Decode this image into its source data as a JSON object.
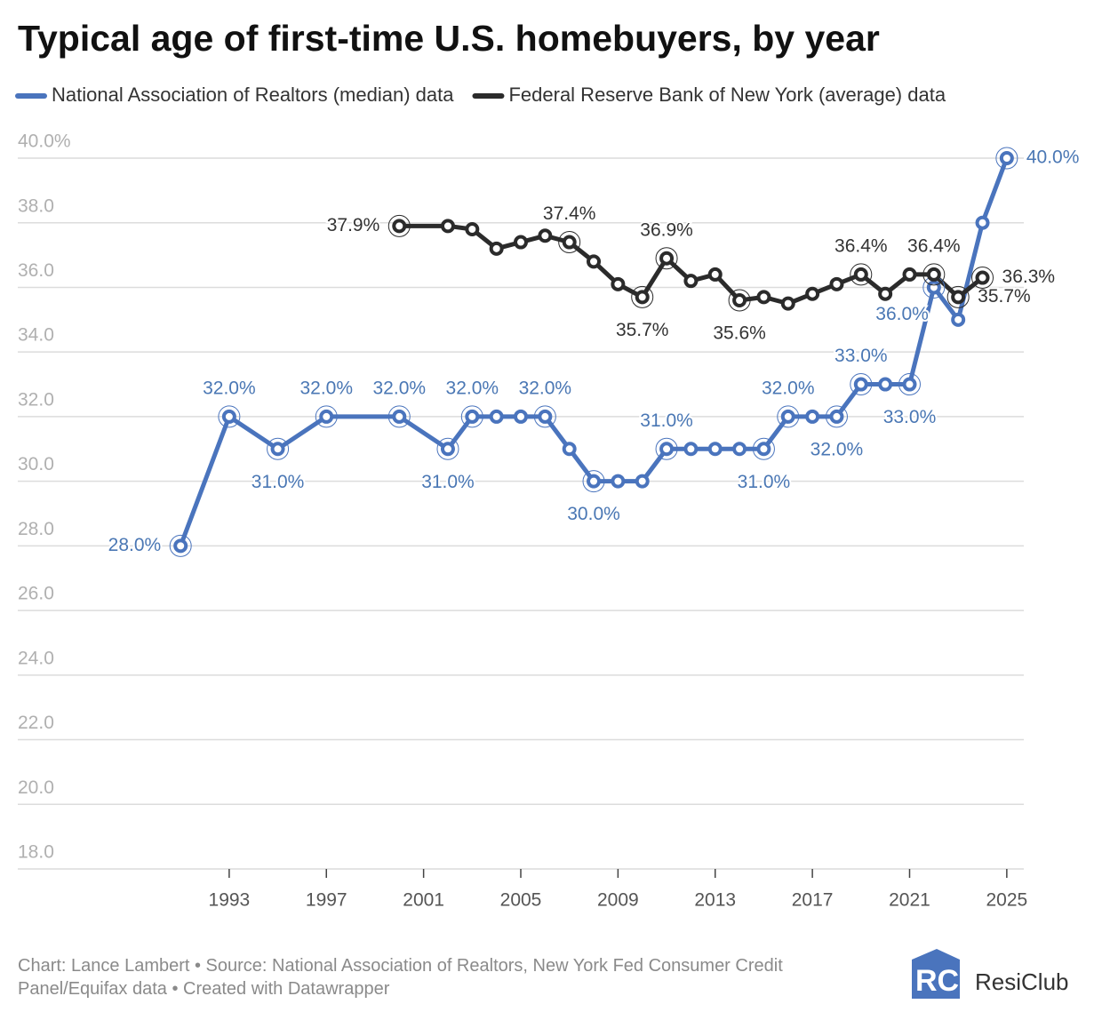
{
  "chart_data": {
    "type": "line",
    "title": "Typical age of first-time U.S. homebuyers, by year",
    "series": [
      {
        "name": "National Association of Realtors (median) data",
        "color": "#4a74bd",
        "x": [
          1991,
          1993,
          1995,
          1997,
          2000,
          2002,
          2003,
          2004,
          2005,
          2006,
          2007,
          2008,
          2009,
          2010,
          2011,
          2012,
          2013,
          2014,
          2015,
          2016,
          2017,
          2018,
          2019,
          2020,
          2021,
          2022,
          2023,
          2024,
          2025
        ],
        "values": [
          28,
          32,
          31,
          32,
          32,
          31,
          32,
          32,
          32,
          32,
          31,
          30,
          30,
          30,
          31,
          31,
          31,
          31,
          31,
          32,
          32,
          32,
          33,
          33,
          33,
          36,
          35,
          38,
          40
        ],
        "value_labels": [
          "28.0%",
          "32.0%",
          "31.0%",
          "32.0%",
          "32.0%",
          "31.0%",
          "32.0%",
          null,
          null,
          "32.0%",
          null,
          "30.0%",
          null,
          null,
          "31.0%",
          null,
          null,
          null,
          "31.0%",
          "32.0%",
          null,
          "32.0%",
          "33.0%",
          null,
          "33.0%",
          "36.0%",
          null,
          null,
          "40.0%"
        ]
      },
      {
        "name": "Federal Reserve Bank of New York (average) data",
        "color": "#2b2b2b",
        "x": [
          2000,
          2002,
          2003,
          2004,
          2005,
          2006,
          2007,
          2008,
          2009,
          2010,
          2011,
          2012,
          2013,
          2014,
          2015,
          2016,
          2017,
          2018,
          2019,
          2020,
          2021,
          2022,
          2023,
          2024
        ],
        "values": [
          37.9,
          37.9,
          37.8,
          37.2,
          37.4,
          37.6,
          37.4,
          36.8,
          36.1,
          35.7,
          36.9,
          36.2,
          36.4,
          35.6,
          35.7,
          35.5,
          35.8,
          36.1,
          36.4,
          35.8,
          36.4,
          36.4,
          35.7,
          36.3
        ],
        "value_labels": [
          "37.9%",
          null,
          null,
          null,
          null,
          null,
          "37.4%",
          null,
          null,
          "35.7%",
          "36.9%",
          null,
          null,
          "35.6%",
          null,
          null,
          null,
          null,
          "36.4%",
          null,
          null,
          "36.4%",
          "35.7%",
          "36.3%"
        ]
      }
    ],
    "xlim": [
      1984.3,
      2025.7
    ],
    "xticks": [
      1993,
      1997,
      2001,
      2005,
      2009,
      2013,
      2017,
      2021,
      2025
    ],
    "ylim": [
      18,
      40
    ],
    "yticks": [
      {
        "value": 18,
        "label": "18.0"
      },
      {
        "value": 20,
        "label": "20.0"
      },
      {
        "value": 22,
        "label": "22.0"
      },
      {
        "value": 24,
        "label": "24.0"
      },
      {
        "value": 26,
        "label": "26.0"
      },
      {
        "value": 28,
        "label": "28.0"
      },
      {
        "value": 30,
        "label": "30.0"
      },
      {
        "value": 32,
        "label": "32.0"
      },
      {
        "value": 34,
        "label": "34.0"
      },
      {
        "value": 36,
        "label": "36.0"
      },
      {
        "value": 38,
        "label": "38.0"
      },
      {
        "value": 40,
        "label": "40.0%"
      }
    ],
    "grid": true,
    "footer": "Chart: Lance Lambert • Source: National Association of Realtors, New York Fed Consumer Credit Panel/Equifax data • Created with Datawrapper",
    "logo": "ResiClub"
  }
}
